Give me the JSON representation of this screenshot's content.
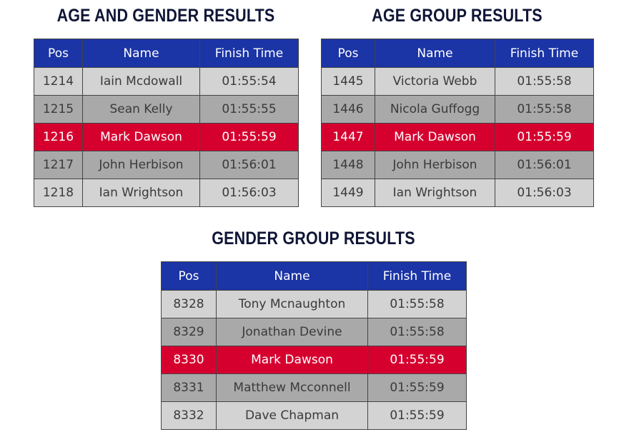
{
  "headers": {
    "pos": "Pos",
    "name": "Name",
    "finish_time": "Finish Time"
  },
  "colors": {
    "header_bg": "#1b34a6",
    "row_light": "#d3d3d3",
    "row_dark": "#a9a9a9",
    "row_highlight": "#d6002f",
    "title_color": "#0f1536"
  },
  "sections": {
    "age_gender": {
      "title": "AGE AND GENDER RESULTS",
      "rows": [
        {
          "pos": "1214",
          "name": "Iain Mcdowall",
          "time": "01:55:54",
          "style": "light"
        },
        {
          "pos": "1215",
          "name": "Sean Kelly",
          "time": "01:55:55",
          "style": "dark"
        },
        {
          "pos": "1216",
          "name": "Mark Dawson",
          "time": "01:55:59",
          "style": "highlight"
        },
        {
          "pos": "1217",
          "name": "John Herbison",
          "time": "01:56:01",
          "style": "dark"
        },
        {
          "pos": "1218",
          "name": "Ian Wrightson",
          "time": "01:56:03",
          "style": "light"
        }
      ]
    },
    "age_group": {
      "title": "AGE GROUP RESULTS",
      "rows": [
        {
          "pos": "1445",
          "name": "Victoria Webb",
          "time": "01:55:58",
          "style": "light"
        },
        {
          "pos": "1446",
          "name": "Nicola Guffogg",
          "time": "01:55:58",
          "style": "dark"
        },
        {
          "pos": "1447",
          "name": "Mark Dawson",
          "time": "01:55:59",
          "style": "highlight"
        },
        {
          "pos": "1448",
          "name": "John Herbison",
          "time": "01:56:01",
          "style": "dark"
        },
        {
          "pos": "1449",
          "name": "Ian Wrightson",
          "time": "01:56:03",
          "style": "light"
        }
      ]
    },
    "gender_group": {
      "title": "GENDER GROUP RESULTS",
      "rows": [
        {
          "pos": "8328",
          "name": "Tony Mcnaughton",
          "time": "01:55:58",
          "style": "light"
        },
        {
          "pos": "8329",
          "name": "Jonathan Devine",
          "time": "01:55:58",
          "style": "dark"
        },
        {
          "pos": "8330",
          "name": "Mark Dawson",
          "time": "01:55:59",
          "style": "highlight"
        },
        {
          "pos": "8331",
          "name": "Matthew Mcconnell",
          "time": "01:55:59",
          "style": "dark"
        },
        {
          "pos": "8332",
          "name": "Dave Chapman",
          "time": "01:55:59",
          "style": "light"
        }
      ]
    }
  }
}
